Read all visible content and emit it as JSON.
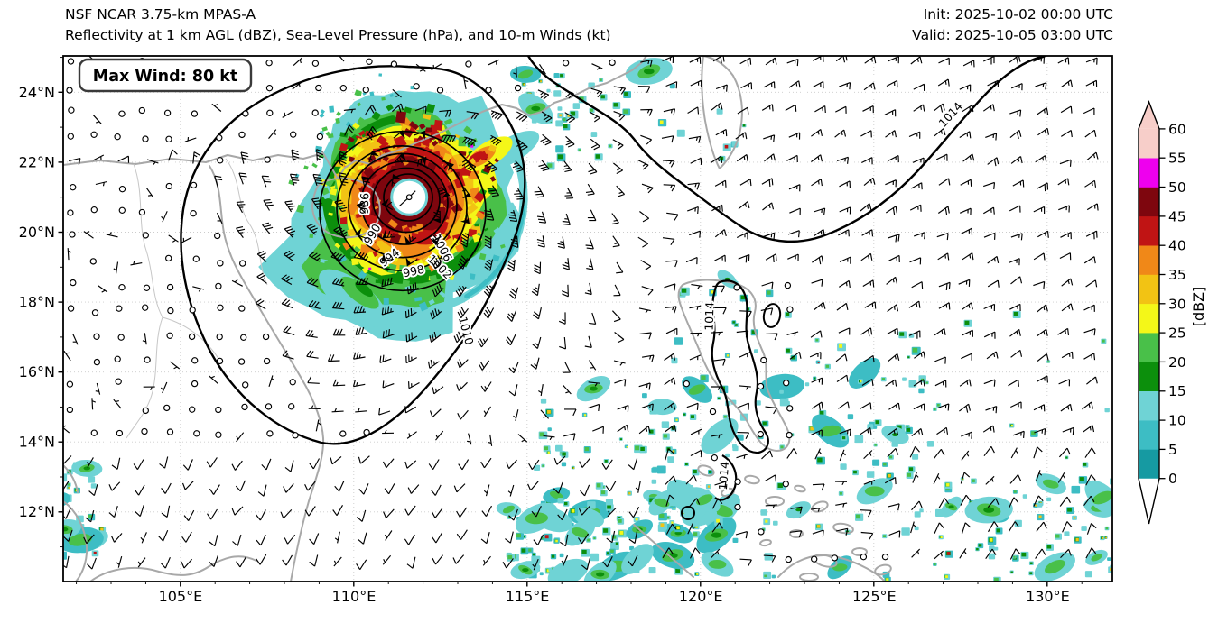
{
  "header": {
    "title": "NSF NCAR 3.75-km MPAS-A",
    "subtitle": "Reflectivity at 1 km AGL (dBZ), Sea-Level Pressure (hPa), and 10-m Winds (kt)",
    "init": "Init: 2025-10-02 00:00 UTC",
    "valid": "Valid: 2025-10-05 03:00 UTC"
  },
  "annotation": {
    "max_wind": "Max Wind: 80 kt"
  },
  "chart_data": {
    "type": "heatmap",
    "subtype": "weather-map-composite: radar reflectivity fill + sea-level-pressure contours + 10-m wind barbs",
    "title": "NSF NCAR 3.75-km MPAS-A",
    "subtitle": "Reflectivity at 1 km AGL (dBZ), Sea-Level Pressure (hPa), and 10-m Winds (kt)",
    "init_time": "2025-10-02 00:00 UTC",
    "valid_time": "2025-10-05 03:00 UTC",
    "lon_range": [
      101.62,
      131.88
    ],
    "lat_range": [
      10.01,
      25.04
    ],
    "x_ticks": [
      105,
      110,
      115,
      120,
      125,
      130
    ],
    "x_tick_labels": [
      "105°E",
      "110°E",
      "115°E",
      "120°E",
      "125°E",
      "130°E"
    ],
    "y_ticks": [
      12,
      14,
      16,
      18,
      20,
      22,
      24
    ],
    "y_tick_labels": [
      "12°N",
      "14°N",
      "16°N",
      "18°N",
      "20°N",
      "22°N",
      "24°N"
    ],
    "grid": "dotted",
    "colorbar": {
      "label": "[dBZ]",
      "ticks": [
        0,
        5,
        10,
        15,
        20,
        25,
        30,
        35,
        40,
        45,
        50,
        55,
        60
      ],
      "tick_labels": [
        "0",
        "5",
        "10",
        "15",
        "20",
        "25",
        "30",
        "35",
        "40",
        "45",
        "50",
        "55",
        "60"
      ],
      "segment_colors": [
        "#169aa2",
        "#3dbdc4",
        "#6fd3d5",
        "#0c8f0c",
        "#49c049",
        "#f4f718",
        "#f2c314",
        "#f08818",
        "#c01414",
        "#7e060e",
        "#ee00ee",
        "#f7cec9"
      ],
      "over_color": "#f7cec9",
      "under_color": "#ffffff",
      "extend": "both",
      "position": "right"
    },
    "cyclone": {
      "center_lon": 111.6,
      "center_lat": 21.0,
      "max_wind_kt": 80,
      "eye": "clear white eye with calm barb marker"
    },
    "slp_contours": {
      "interval_hpa": 4,
      "labels_visible": [
        "986",
        "990",
        "994",
        "998",
        "1002",
        "1006",
        "1010",
        "1014",
        "1014",
        "1014"
      ]
    },
    "wind_barbs": {
      "units": "kt",
      "calm_symbol": "open circle",
      "pennant_kt": 50,
      "full_barb_kt": 10,
      "half_barb_kt": 5
    },
    "geography_visible": [
      "South China coast",
      "Hainan",
      "Vietnam coast",
      "Taiwan",
      "Luzon",
      "Philippine islands",
      "Palawan"
    ]
  }
}
